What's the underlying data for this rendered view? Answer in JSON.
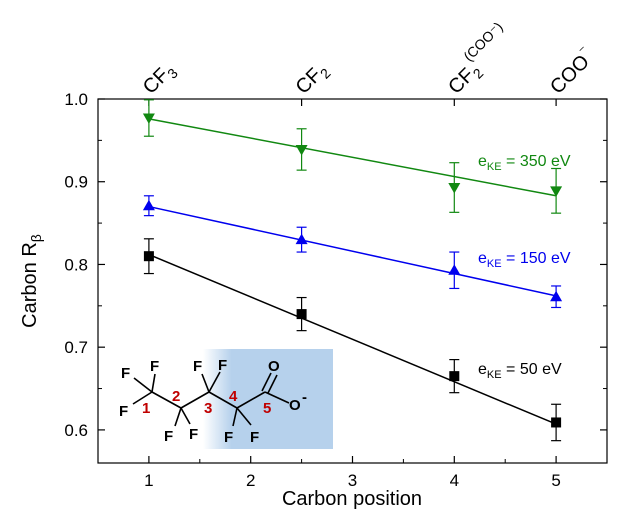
{
  "chart_data": {
    "type": "scatter",
    "xlabel": "Carbon position",
    "ylabel": {
      "base": "Carbon R",
      "sub": "β"
    },
    "xlim": [
      0.5,
      5.5
    ],
    "ylim": [
      0.56,
      1.0
    ],
    "xticks": [
      1,
      2,
      3,
      4,
      5
    ],
    "yticks": [
      0.6,
      0.7,
      0.8,
      0.9,
      1.0
    ],
    "xtick_labels": [
      "1",
      "2",
      "3",
      "4",
      "5"
    ],
    "ytick_labels": [
      "0.6",
      "0.7",
      "0.8",
      "0.9",
      "1.0"
    ],
    "grid": false,
    "top_axis": {
      "ticks": [
        1,
        2.5,
        4,
        5
      ],
      "labels": [
        {
          "base": "CF",
          "sub": "3",
          "sup": ""
        },
        {
          "base": "CF",
          "sub": "2",
          "sup": ""
        },
        {
          "base": "CF",
          "sub": "2",
          "sup": "(COO⁻)"
        },
        {
          "base": "COO",
          "sub": "",
          "sup": "⁻"
        }
      ]
    },
    "series": [
      {
        "name": {
          "prefix": "e",
          "sub": "KE",
          "suffix": " = 350 eV"
        },
        "marker": "triangle-down",
        "color": "#118811",
        "x": [
          1,
          2.5,
          4,
          5
        ],
        "y": [
          0.977,
          0.939,
          0.893,
          0.889
        ],
        "err": [
          0.022,
          0.025,
          0.03,
          0.027
        ],
        "fit": [
          [
            1,
            0.976
          ],
          [
            5,
            0.883
          ]
        ]
      },
      {
        "name": {
          "prefix": "e",
          "sub": "KE",
          "suffix": " = 150 eV"
        },
        "marker": "triangle-up",
        "color": "#0000ee",
        "x": [
          1,
          2.5,
          4,
          5
        ],
        "y": [
          0.871,
          0.83,
          0.793,
          0.761
        ],
        "err": [
          0.012,
          0.015,
          0.022,
          0.013
        ],
        "fit": [
          [
            1,
            0.87
          ],
          [
            5,
            0.762
          ]
        ]
      },
      {
        "name": {
          "prefix": "e",
          "sub": "KE",
          "suffix": " = 50 eV"
        },
        "marker": "square",
        "color": "#000000",
        "x": [
          1,
          2.5,
          4,
          5
        ],
        "y": [
          0.81,
          0.74,
          0.665,
          0.609
        ],
        "err": [
          0.021,
          0.02,
          0.02,
          0.022
        ],
        "fit": [
          [
            1,
            0.812
          ],
          [
            5,
            0.607
          ]
        ]
      }
    ]
  },
  "molecule": {
    "atoms": [
      "F",
      "F",
      "F",
      "F",
      "F",
      "F",
      "F",
      "F",
      "F",
      "O",
      "O"
    ],
    "charge": "-",
    "carbon_numbers": [
      "1",
      "2",
      "3",
      "4",
      "5"
    ],
    "number_color": "#c00000",
    "highlight_color": "#a8c8e8"
  }
}
